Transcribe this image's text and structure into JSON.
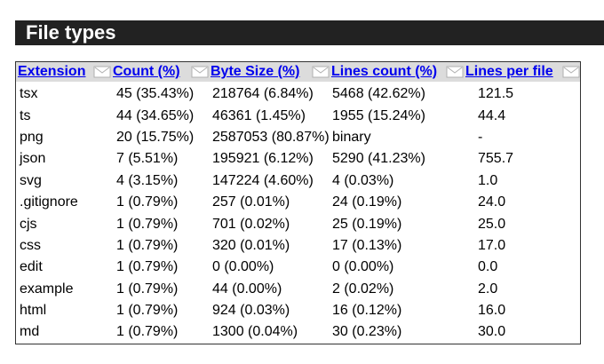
{
  "section": {
    "title": "File types"
  },
  "table": {
    "headers": [
      {
        "label": "Extension"
      },
      {
        "label": "Count (%)"
      },
      {
        "label": "Byte Size (%)"
      },
      {
        "label": "Lines count (%)"
      },
      {
        "label": "Lines per file"
      }
    ],
    "rows": [
      {
        "ext": "tsx",
        "count": "45 (35.43%)",
        "bytes": "218764 (6.84%)",
        "lines": "5468 (42.62%)",
        "lpf": "121.5"
      },
      {
        "ext": "ts",
        "count": "44 (34.65%)",
        "bytes": "46361 (1.45%)",
        "lines": "1955 (15.24%)",
        "lpf": "44.4"
      },
      {
        "ext": "png",
        "count": "20 (15.75%)",
        "bytes": "2587053 (80.87%)",
        "lines": "binary",
        "lpf": "-"
      },
      {
        "ext": "json",
        "count": "7 (5.51%)",
        "bytes": "195921 (6.12%)",
        "lines": "5290 (41.23%)",
        "lpf": "755.7"
      },
      {
        "ext": "svg",
        "count": "4 (3.15%)",
        "bytes": "147224 (4.60%)",
        "lines": "4 (0.03%)",
        "lpf": "1.0"
      },
      {
        "ext": ".gitignore",
        "count": "1 (0.79%)",
        "bytes": "257 (0.01%)",
        "lines": "24 (0.19%)",
        "lpf": "24.0"
      },
      {
        "ext": "cjs",
        "count": "1 (0.79%)",
        "bytes": "701 (0.02%)",
        "lines": "25 (0.19%)",
        "lpf": "25.0"
      },
      {
        "ext": "css",
        "count": "1 (0.79%)",
        "bytes": "320 (0.01%)",
        "lines": "17 (0.13%)",
        "lpf": "17.0"
      },
      {
        "ext": "edit",
        "count": "1 (0.79%)",
        "bytes": "0 (0.00%)",
        "lines": "0 (0.00%)",
        "lpf": "0.0"
      },
      {
        "ext": "example",
        "count": "1 (0.79%)",
        "bytes": "44 (0.00%)",
        "lines": "2 (0.02%)",
        "lpf": "2.0"
      },
      {
        "ext": "html",
        "count": "1 (0.79%)",
        "bytes": "924 (0.03%)",
        "lines": "16 (0.12%)",
        "lpf": "16.0"
      },
      {
        "ext": "md",
        "count": "1 (0.79%)",
        "bytes": "1300 (0.04%)",
        "lines": "30 (0.23%)",
        "lpf": "30.0"
      }
    ]
  },
  "colors": {
    "header_bar": "#222222",
    "link_blue": "#0000ee",
    "table_header_bg": "#dcdcdc"
  },
  "icons": {
    "sort": "sort-arrows-icon"
  }
}
